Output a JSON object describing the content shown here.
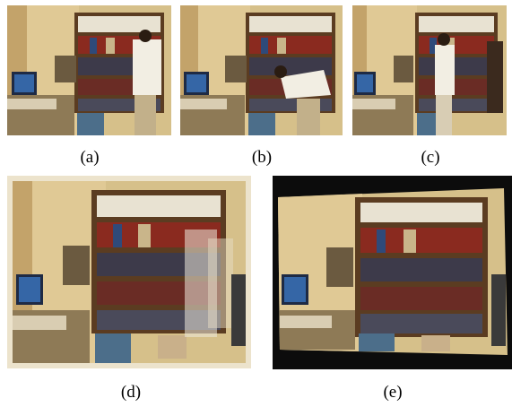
{
  "figure": {
    "panels": [
      {
        "id": "a",
        "caption": "(a)"
      },
      {
        "id": "b",
        "caption": "(b)"
      },
      {
        "id": "c",
        "caption": "(c)"
      },
      {
        "id": "d",
        "caption": "(d)"
      },
      {
        "id": "e",
        "caption": "(e)"
      }
    ]
  }
}
